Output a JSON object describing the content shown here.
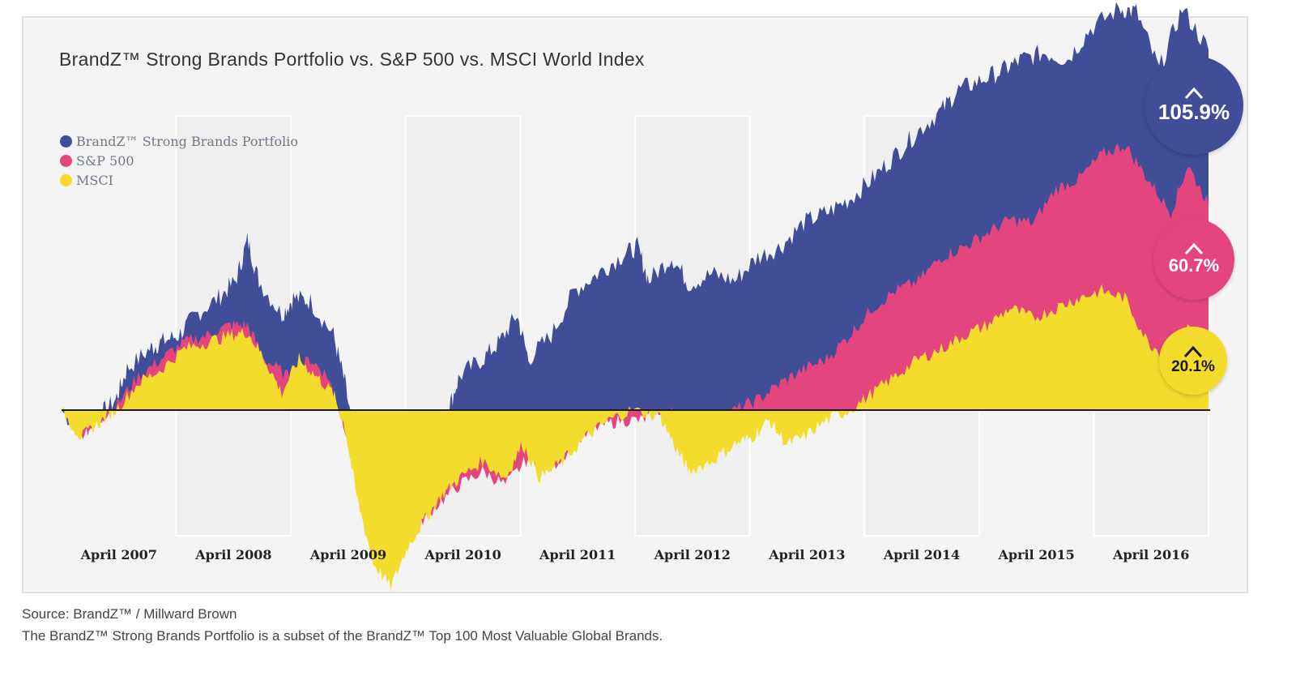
{
  "chart_data": {
    "type": "area",
    "title": "BrandZ™ Strong Brands Portfolio vs. S&P 500 vs. MSCI World Index",
    "xlabel": "",
    "ylabel": "",
    "x_tick_labels": [
      "April 2007",
      "April 2008",
      "April 2009",
      "April 2010",
      "April 2011",
      "April 2012",
      "April 2013",
      "April 2014",
      "April 2015",
      "April 2016"
    ],
    "x_range": [
      2006.53,
      2016.53
    ],
    "ylim": [
      -60,
      122
    ],
    "grid": false,
    "legend_placement": "top-left",
    "colors": {
      "brandz": "#3f4e96",
      "sp500": "#e5457f",
      "msci": "#f4dc2c"
    },
    "series": [
      {
        "name": "BrandZ™ Strong Brands Portfolio",
        "color": "#3f4e96",
        "final_label": "105.9%",
        "points": [
          [
            2006.53,
            0
          ],
          [
            2006.7,
            -7
          ],
          [
            2006.85,
            -2
          ],
          [
            2007.0,
            3
          ],
          [
            2007.1,
            12
          ],
          [
            2007.3,
            18
          ],
          [
            2007.4,
            20
          ],
          [
            2007.55,
            22
          ],
          [
            2007.7,
            28
          ],
          [
            2007.9,
            33
          ],
          [
            2008.05,
            38
          ],
          [
            2008.15,
            50
          ],
          [
            2008.25,
            38
          ],
          [
            2008.45,
            28
          ],
          [
            2008.55,
            33
          ],
          [
            2008.7,
            32
          ],
          [
            2008.9,
            22
          ],
          [
            2009.0,
            8
          ],
          [
            2009.1,
            -12
          ],
          [
            2009.25,
            -35
          ],
          [
            2009.4,
            -45
          ],
          [
            2009.5,
            -30
          ],
          [
            2009.6,
            -20
          ],
          [
            2009.8,
            -5
          ],
          [
            2009.9,
            0
          ],
          [
            2010.0,
            10
          ],
          [
            2010.2,
            15
          ],
          [
            2010.35,
            20
          ],
          [
            2010.5,
            28
          ],
          [
            2010.6,
            15
          ],
          [
            2010.8,
            22
          ],
          [
            2011.0,
            35
          ],
          [
            2011.2,
            40
          ],
          [
            2011.4,
            45
          ],
          [
            2011.55,
            48
          ],
          [
            2011.65,
            38
          ],
          [
            2011.85,
            45
          ],
          [
            2012.0,
            37
          ],
          [
            2012.2,
            40
          ],
          [
            2012.4,
            38
          ],
          [
            2012.6,
            45
          ],
          [
            2012.8,
            48
          ],
          [
            2013.0,
            55
          ],
          [
            2013.2,
            58
          ],
          [
            2013.4,
            62
          ],
          [
            2013.6,
            68
          ],
          [
            2013.8,
            75
          ],
          [
            2014.0,
            82
          ],
          [
            2014.2,
            88
          ],
          [
            2014.35,
            94
          ],
          [
            2014.55,
            97
          ],
          [
            2014.75,
            100
          ],
          [
            2014.9,
            103
          ],
          [
            2015.1,
            105
          ],
          [
            2015.3,
            103
          ],
          [
            2015.5,
            112
          ],
          [
            2015.75,
            118
          ],
          [
            2015.9,
            117
          ],
          [
            2016.1,
            100
          ],
          [
            2016.3,
            118
          ],
          [
            2016.53,
            105.9
          ]
        ]
      },
      {
        "name": "S&P 500",
        "color": "#e5457f",
        "final_label": "60.7%",
        "points": [
          [
            2006.53,
            0
          ],
          [
            2006.7,
            -7
          ],
          [
            2006.85,
            -3
          ],
          [
            2007.0,
            1
          ],
          [
            2007.2,
            10
          ],
          [
            2007.4,
            15
          ],
          [
            2007.6,
            20
          ],
          [
            2007.8,
            22
          ],
          [
            2008.0,
            25
          ],
          [
            2008.15,
            25
          ],
          [
            2008.3,
            15
          ],
          [
            2008.5,
            10
          ],
          [
            2008.7,
            15
          ],
          [
            2008.85,
            10
          ],
          [
            2009.0,
            -5
          ],
          [
            2009.1,
            -20
          ],
          [
            2009.25,
            -42
          ],
          [
            2009.4,
            -48
          ],
          [
            2009.6,
            -35
          ],
          [
            2009.8,
            -28
          ],
          [
            2010.0,
            -22
          ],
          [
            2010.2,
            -18
          ],
          [
            2010.4,
            -22
          ],
          [
            2010.6,
            -14
          ],
          [
            2010.8,
            -17
          ],
          [
            2011.0,
            -10
          ],
          [
            2011.2,
            -5
          ],
          [
            2011.4,
            -3
          ],
          [
            2011.6,
            -3
          ],
          [
            2011.75,
            0
          ],
          [
            2012.0,
            -2
          ],
          [
            2012.2,
            -5
          ],
          [
            2012.4,
            0
          ],
          [
            2012.6,
            3
          ],
          [
            2012.8,
            8
          ],
          [
            2013.0,
            12
          ],
          [
            2013.2,
            15
          ],
          [
            2013.4,
            22
          ],
          [
            2013.6,
            30
          ],
          [
            2013.8,
            35
          ],
          [
            2014.0,
            38
          ],
          [
            2014.2,
            45
          ],
          [
            2014.4,
            48
          ],
          [
            2014.6,
            52
          ],
          [
            2014.8,
            56
          ],
          [
            2015.0,
            55
          ],
          [
            2015.2,
            65
          ],
          [
            2015.4,
            68
          ],
          [
            2015.6,
            75
          ],
          [
            2015.8,
            78
          ],
          [
            2016.0,
            68
          ],
          [
            2016.2,
            58
          ],
          [
            2016.35,
            72
          ],
          [
            2016.53,
            60.7
          ]
        ]
      },
      {
        "name": "MSCI",
        "color": "#f4dc2c",
        "final_label": "20.1%",
        "points": [
          [
            2006.53,
            0
          ],
          [
            2006.7,
            -8
          ],
          [
            2006.85,
            -4
          ],
          [
            2007.0,
            0
          ],
          [
            2007.2,
            8
          ],
          [
            2007.4,
            12
          ],
          [
            2007.6,
            18
          ],
          [
            2007.8,
            20
          ],
          [
            2008.0,
            22
          ],
          [
            2008.15,
            23
          ],
          [
            2008.3,
            15
          ],
          [
            2008.45,
            5
          ],
          [
            2008.6,
            15
          ],
          [
            2008.75,
            10
          ],
          [
            2008.9,
            5
          ],
          [
            2009.0,
            -5
          ],
          [
            2009.1,
            -25
          ],
          [
            2009.25,
            -45
          ],
          [
            2009.4,
            -52
          ],
          [
            2009.55,
            -40
          ],
          [
            2009.7,
            -32
          ],
          [
            2009.85,
            -25
          ],
          [
            2010.0,
            -20
          ],
          [
            2010.2,
            -15
          ],
          [
            2010.4,
            -20
          ],
          [
            2010.55,
            -10
          ],
          [
            2010.7,
            -20
          ],
          [
            2010.9,
            -15
          ],
          [
            2011.1,
            -8
          ],
          [
            2011.3,
            -3
          ],
          [
            2011.5,
            0
          ],
          [
            2011.75,
            -2
          ],
          [
            2011.9,
            -12
          ],
          [
            2012.0,
            -18
          ],
          [
            2012.2,
            -15
          ],
          [
            2012.4,
            -10
          ],
          [
            2012.55,
            -8
          ],
          [
            2012.7,
            -3
          ],
          [
            2012.85,
            -10
          ],
          [
            2013.0,
            -8
          ],
          [
            2013.2,
            -3
          ],
          [
            2013.4,
            0
          ],
          [
            2013.6,
            5
          ],
          [
            2013.8,
            10
          ],
          [
            2014.0,
            15
          ],
          [
            2014.2,
            18
          ],
          [
            2014.4,
            22
          ],
          [
            2014.6,
            25
          ],
          [
            2014.8,
            30
          ],
          [
            2015.0,
            27
          ],
          [
            2015.2,
            30
          ],
          [
            2015.4,
            33
          ],
          [
            2015.6,
            35
          ],
          [
            2015.8,
            33
          ],
          [
            2016.0,
            20
          ],
          [
            2016.2,
            15
          ],
          [
            2016.35,
            25
          ],
          [
            2016.53,
            20.1
          ]
        ]
      }
    ]
  },
  "badges": {
    "brandz": "105.9%",
    "sp500": "60.7%",
    "msci": "20.1%"
  },
  "footer": {
    "source": "Source: BrandZ™ / Millward Brown",
    "note": "The BrandZ™ Strong Brands Portfolio is a subset of the BrandZ™ Top 100 Most Valuable Global Brands."
  }
}
